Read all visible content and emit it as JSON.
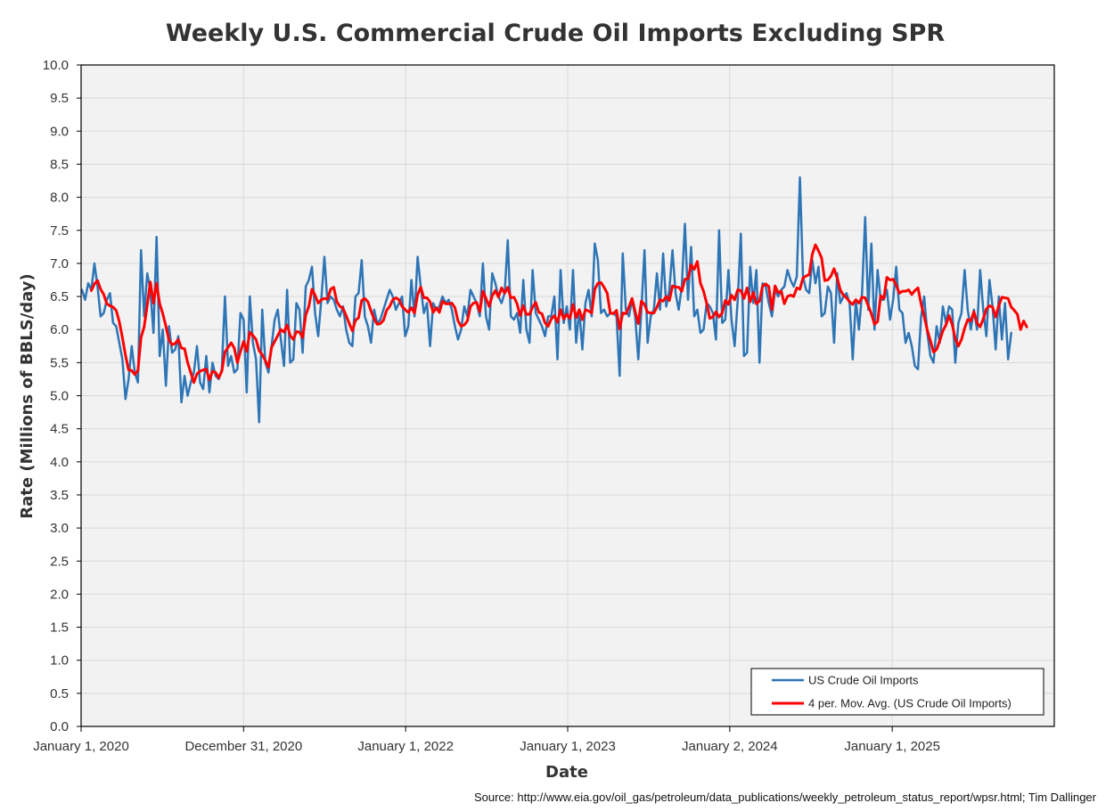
{
  "chart_data": {
    "type": "line",
    "title": "Weekly U.S. Commercial Crude Oil Imports Excluding SPR",
    "xlabel": "Date",
    "ylabel": "Rate (Millions of BBLS/day)",
    "source": "Source: http://www.eia.gov/oil_gas/petroleum/data_publications/weekly_petroleum_status_report/wpsr.html; Tim Dallinger",
    "ylim": [
      0,
      10
    ],
    "y_ticks": [
      "0.0",
      "0.5",
      "1.0",
      "1.5",
      "2.0",
      "2.5",
      "3.0",
      "3.5",
      "4.0",
      "4.5",
      "5.0",
      "5.5",
      "6.0",
      "6.5",
      "7.0",
      "7.5",
      "8.0",
      "8.5",
      "9.0",
      "9.5",
      "10.0"
    ],
    "x_tick_labels": [
      "January 1, 2020",
      "December 31, 2020",
      "January 1, 2022",
      "January 1, 2023",
      "January 2, 2024",
      "January 1, 2025"
    ],
    "x_start": "2020-01-03",
    "x_end": "2025-11-21",
    "x_interval_days": 7,
    "grid": true,
    "legend_position": "bottom-right",
    "colors": {
      "imports": "#2e75b6",
      "moving_avg": "#ff0000",
      "plot_bg": "#f2f2f2",
      "grid": "#d9d9d9"
    },
    "series": [
      {
        "name": "US Crude Oil Imports",
        "values": [
          6.6,
          6.45,
          6.7,
          6.6,
          7.0,
          6.65,
          6.2,
          6.25,
          6.45,
          6.55,
          6.1,
          6.05,
          5.8,
          5.55,
          4.95,
          5.25,
          5.75,
          5.35,
          5.2,
          7.2,
          6.2,
          6.85,
          6.6,
          5.95,
          7.4,
          5.6,
          6.0,
          5.15,
          6.05,
          5.65,
          5.7,
          5.9,
          4.9,
          5.3,
          5.0,
          5.2,
          5.35,
          5.75,
          5.2,
          5.1,
          5.6,
          5.05,
          5.5,
          5.3,
          5.25,
          5.4,
          6.5,
          5.45,
          5.6,
          5.35,
          5.4,
          6.25,
          6.15,
          5.05,
          6.5,
          5.8,
          5.55,
          4.6,
          6.3,
          5.5,
          5.35,
          5.75,
          6.15,
          6.3,
          5.85,
          5.45,
          6.6,
          5.5,
          5.55,
          6.4,
          6.3,
          5.65,
          6.65,
          6.75,
          6.95,
          6.25,
          5.9,
          6.45,
          7.1,
          6.4,
          6.5,
          6.45,
          6.3,
          6.2,
          6.35,
          6.0,
          5.8,
          5.75,
          6.5,
          6.55,
          7.05,
          6.2,
          6.05,
          5.8,
          6.3,
          6.1,
          6.15,
          6.3,
          6.45,
          6.6,
          6.5,
          6.3,
          6.4,
          6.5,
          5.9,
          6.05,
          6.75,
          6.2,
          7.1,
          6.65,
          6.25,
          6.4,
          5.75,
          6.4,
          6.3,
          6.35,
          6.5,
          6.4,
          6.45,
          6.3,
          6.05,
          5.85,
          6.0,
          6.35,
          6.2,
          6.6,
          6.5,
          6.4,
          6.2,
          7.0,
          6.2,
          6.0,
          6.85,
          6.7,
          6.5,
          6.4,
          6.55,
          7.35,
          6.2,
          6.15,
          6.25,
          5.95,
          6.75,
          6.0,
          5.8,
          6.9,
          6.25,
          6.15,
          6.05,
          5.9,
          6.2,
          6.2,
          6.5,
          5.55,
          6.9,
          6.1,
          6.35,
          6.0,
          6.9,
          5.8,
          6.3,
          5.7,
          6.4,
          6.6,
          6.2,
          7.3,
          7.05,
          6.25,
          6.3,
          6.2,
          6.25,
          6.25,
          6.2,
          5.3,
          7.15,
          6.3,
          6.2,
          6.45,
          6.2,
          5.55,
          6.3,
          7.2,
          5.8,
          6.2,
          6.3,
          6.85,
          6.3,
          7.15,
          6.35,
          6.6,
          7.2,
          6.55,
          6.3,
          6.65,
          7.6,
          6.45,
          7.25,
          6.2,
          6.3,
          5.95,
          6.0,
          6.4,
          6.35,
          6.25,
          5.85,
          7.5,
          6.1,
          6.15,
          6.9,
          6.15,
          5.75,
          6.45,
          7.45,
          5.6,
          5.65,
          6.95,
          6.4,
          6.9,
          5.5,
          6.7,
          6.65,
          6.4,
          6.2,
          6.6,
          6.5,
          6.6,
          6.65,
          6.9,
          6.75,
          6.65,
          6.8,
          8.3,
          6.8,
          6.6,
          6.55,
          7.05,
          6.7,
          6.95,
          6.2,
          6.25,
          6.65,
          6.55,
          5.8,
          6.85,
          6.4,
          6.5,
          6.55,
          6.4,
          5.55,
          6.45,
          6.0,
          6.55,
          7.7,
          6.3,
          7.3,
          6.0,
          6.9,
          6.45,
          6.45,
          6.6,
          6.15,
          6.45,
          6.95,
          6.3,
          6.25,
          5.8,
          5.95,
          5.75,
          5.45,
          5.4,
          6.2,
          6.5,
          5.95,
          5.6,
          5.5,
          6.05,
          5.8,
          6.35,
          6.1,
          6.35,
          6.3,
          5.5,
          6.1,
          6.25,
          6.9,
          6.3,
          6.0,
          6.3,
          6.0,
          6.9,
          6.3,
          5.9,
          6.75,
          6.35,
          5.7,
          6.5,
          5.85,
          6.4,
          5.55,
          5.95
        ]
      },
      {
        "name": "4 per. Mov. Avg. (US Crude Oil Imports)",
        "values": [
          null,
          null,
          null,
          6.59,
          6.69,
          6.74,
          6.61,
          6.53,
          6.39,
          6.36,
          6.34,
          6.29,
          6.12,
          5.88,
          5.61,
          5.39,
          5.38,
          5.32,
          5.38,
          5.88,
          6.04,
          6.37,
          6.72,
          6.4,
          6.7,
          6.39,
          6.24,
          6.05,
          5.84,
          5.77,
          5.79,
          5.85,
          5.72,
          5.71,
          5.5,
          5.35,
          5.2,
          5.33,
          5.37,
          5.39,
          5.4,
          5.24,
          5.37,
          5.35,
          5.27,
          5.37,
          5.66,
          5.73,
          5.8,
          5.72,
          5.5,
          5.67,
          5.82,
          5.67,
          5.96,
          5.91,
          5.85,
          5.68,
          5.62,
          5.53,
          5.43,
          5.73,
          5.82,
          5.91,
          6.0,
          5.96,
          6.07,
          5.91,
          5.85,
          5.97,
          5.96,
          5.88,
          6.22,
          6.35,
          6.61,
          6.52,
          6.4,
          6.45,
          6.47,
          6.46,
          6.61,
          6.64,
          6.42,
          6.35,
          6.32,
          6.21,
          6.09,
          5.98,
          6.14,
          6.18,
          6.44,
          6.47,
          6.42,
          6.28,
          6.16,
          6.08,
          6.09,
          6.14,
          6.29,
          6.35,
          6.45,
          6.48,
          6.45,
          6.35,
          6.3,
          6.26,
          6.33,
          6.25,
          6.53,
          6.64,
          6.48,
          6.48,
          6.42,
          6.26,
          6.33,
          6.26,
          6.43,
          6.39,
          6.39,
          6.4,
          6.33,
          6.13,
          6.05,
          6.07,
          6.13,
          6.35,
          6.4,
          6.41,
          6.27,
          6.58,
          6.47,
          6.35,
          6.51,
          6.59,
          6.49,
          6.63,
          6.55,
          6.64,
          6.48,
          6.49,
          6.39,
          6.21,
          6.36,
          6.23,
          6.23,
          6.34,
          6.41,
          6.26,
          6.24,
          6.1,
          6.05,
          6.16,
          6.21,
          6.11,
          6.3,
          6.16,
          6.23,
          6.17,
          6.38,
          6.18,
          6.3,
          6.15,
          6.3,
          6.28,
          6.25,
          6.61,
          6.7,
          6.71,
          6.64,
          6.55,
          6.25,
          6.24,
          6.29,
          6.01,
          6.25,
          6.24,
          6.34,
          6.47,
          6.27,
          6.09,
          6.43,
          6.38,
          6.26,
          6.25,
          6.25,
          6.34,
          6.45,
          6.43,
          6.5,
          6.44,
          6.66,
          6.64,
          6.64,
          6.58,
          6.76,
          6.77,
          6.98,
          6.91,
          7.03,
          6.7,
          6.58,
          6.4,
          6.17,
          6.19,
          6.27,
          6.19,
          6.25,
          6.44,
          6.38,
          6.52,
          6.45,
          6.6,
          6.59,
          6.47,
          6.63,
          6.42,
          6.56,
          6.39,
          6.43,
          6.66,
          6.69,
          6.65,
          6.3,
          6.66,
          6.56,
          6.58,
          6.39,
          6.5,
          6.52,
          6.5,
          6.63,
          6.61,
          6.78,
          6.81,
          6.83,
          7.14,
          7.28,
          7.19,
          7.08,
          6.74,
          6.75,
          6.81,
          6.92,
          6.78,
          6.6,
          6.52,
          6.48,
          6.42,
          6.38,
          6.45,
          6.4,
          6.49,
          6.48,
          6.36,
          6.24,
          6.08,
          6.12,
          6.51,
          6.47,
          6.79,
          6.75,
          6.76,
          6.67,
          6.55,
          6.58,
          6.58,
          6.6,
          6.53,
          6.59,
          6.63,
          6.39,
          6.2,
          5.99,
          5.83,
          5.66,
          5.7,
          5.83,
          5.98,
          6.07,
          6.21,
          6.08,
          5.86,
          5.75,
          5.85,
          6.02,
          6.15,
          6.13,
          6.27,
          6.1,
          6.04,
          6.16,
          6.31,
          6.36,
          6.34,
          6.19,
          6.36,
          6.49,
          6.48,
          6.47,
          6.34,
          6.29,
          6.23,
          6.0,
          6.13,
          6.04
        ]
      }
    ]
  }
}
